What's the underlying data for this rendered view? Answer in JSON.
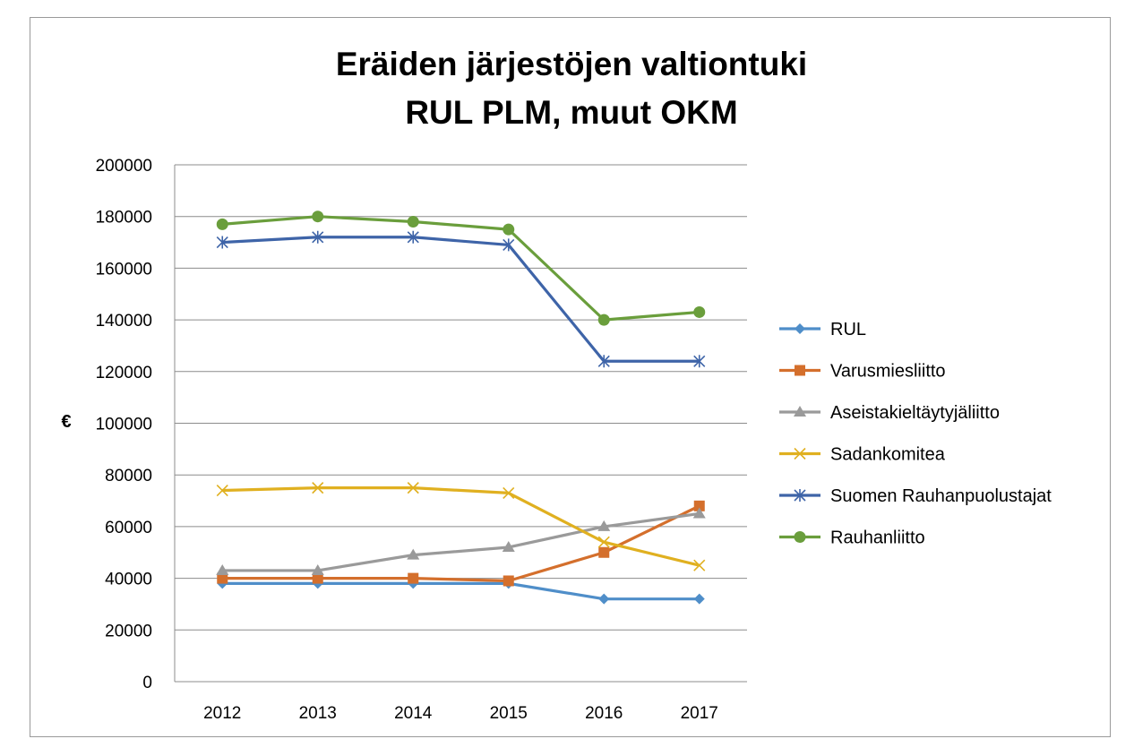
{
  "chart_data": {
    "type": "line",
    "title": [
      "Eräiden järjestöjen valtiontuki",
      "RUL PLM, muut OKM"
    ],
    "xlabel": "",
    "ylabel": "€",
    "categories": [
      "2012",
      "2013",
      "2014",
      "2015",
      "2016",
      "2017"
    ],
    "ylim": [
      0,
      200000
    ],
    "yticks": [
      0,
      20000,
      40000,
      60000,
      80000,
      100000,
      120000,
      140000,
      160000,
      180000,
      200000
    ],
    "grid": "horizontal",
    "legend_position": "right",
    "series": [
      {
        "name": "RUL",
        "color": "#4f8ec9",
        "marker": "diamond",
        "values": [
          38000,
          38000,
          38000,
          38000,
          32000,
          32000
        ]
      },
      {
        "name": "Varusmiesliitto",
        "color": "#d46f2c",
        "marker": "square",
        "values": [
          40000,
          40000,
          40000,
          39000,
          50000,
          68000
        ]
      },
      {
        "name": "Aseistakieltäytyjäliitto",
        "color": "#9a9a9a",
        "marker": "triangle",
        "values": [
          43000,
          43000,
          49000,
          52000,
          60000,
          65000
        ]
      },
      {
        "name": "Sadankomitea",
        "color": "#e0b020",
        "marker": "x",
        "values": [
          74000,
          75000,
          75000,
          73000,
          54000,
          45000
        ]
      },
      {
        "name": "Suomen Rauhanpuolustajat",
        "color": "#3e64a8",
        "marker": "star",
        "values": [
          170000,
          172000,
          172000,
          169000,
          124000,
          124000
        ]
      },
      {
        "name": "Rauhanliitto",
        "color": "#6a9e3c",
        "marker": "circle",
        "values": [
          177000,
          180000,
          178000,
          175000,
          140000,
          143000
        ]
      }
    ]
  }
}
